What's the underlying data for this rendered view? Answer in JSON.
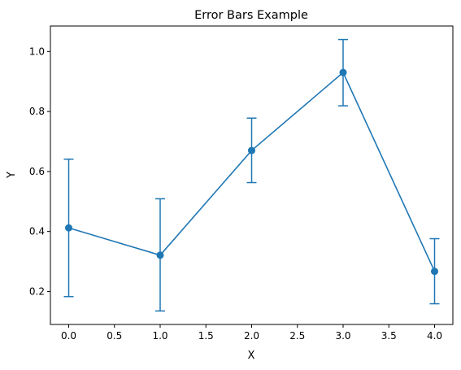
{
  "chart_data": {
    "type": "line",
    "title": "Error Bars Example",
    "xlabel": "X",
    "ylabel": "Y",
    "xlim": [
      -0.2,
      4.2
    ],
    "ylim": [
      0.09,
      1.085
    ],
    "x_ticks": [
      0.0,
      0.5,
      1.0,
      1.5,
      2.0,
      2.5,
      3.0,
      3.5,
      4.0
    ],
    "x_tick_labels": [
      "0.0",
      "0.5",
      "1.0",
      "1.5",
      "2.0",
      "2.5",
      "3.0",
      "3.5",
      "4.0"
    ],
    "y_ticks": [
      0.2,
      0.4,
      0.6,
      0.8,
      1.0
    ],
    "y_tick_labels": [
      "0.2",
      "0.4",
      "0.6",
      "0.8",
      "1.0"
    ],
    "grid": false,
    "series": [
      {
        "x": [
          0,
          1,
          2,
          3,
          4
        ],
        "y": [
          0.412,
          0.321,
          0.67,
          0.93,
          0.267
        ],
        "yerr_low": [
          0.183,
          0.135,
          0.563,
          0.819,
          0.159
        ],
        "yerr_high": [
          0.641,
          0.509,
          0.778,
          1.04,
          0.376
        ],
        "color": "#1f77b4",
        "marker": "circle"
      }
    ]
  }
}
